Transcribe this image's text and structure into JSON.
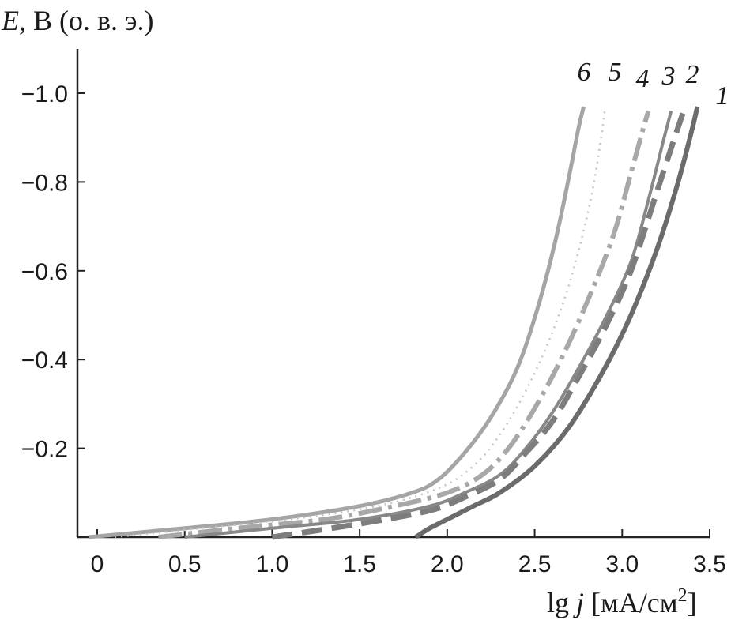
{
  "chart_data": {
    "type": "line",
    "title": "",
    "ylabel": {
      "italic": "E",
      "rest": ", В (о. в. э.)"
    },
    "xlabel": {
      "prefix": "lg ",
      "italic": "j",
      "rest": " [мА/см",
      "sup": "2",
      "end": "]"
    },
    "xlim": [
      -0.12,
      3.5
    ],
    "ylim": [
      0,
      -1.1
    ],
    "x_ticks": [
      0,
      0.5,
      1.0,
      1.5,
      2.0,
      2.5,
      3.0,
      3.5
    ],
    "x_tick_labels": [
      "0",
      "0.5",
      "1.0",
      "1.5",
      "2.0",
      "2.5",
      "3.0",
      "3.5"
    ],
    "y_ticks": [
      -0.2,
      -0.4,
      -0.6,
      -0.8,
      -1.0
    ],
    "y_tick_labels": [
      "−0.2",
      "−0.4",
      "−0.6",
      "−0.8",
      "−1.0"
    ],
    "grid": false,
    "legend": "curve labels at top-right",
    "series": [
      {
        "label": "1",
        "color": "#6b6b6b",
        "dash": "",
        "width": 6,
        "x": [
          1.82,
          1.9,
          2.0,
          2.15,
          2.3,
          2.5,
          2.7,
          2.9,
          3.05,
          3.2,
          3.32,
          3.4,
          3.43
        ],
        "y": [
          0.0,
          -0.02,
          -0.04,
          -0.07,
          -0.1,
          -0.16,
          -0.25,
          -0.38,
          -0.5,
          -0.65,
          -0.8,
          -0.92,
          -0.97
        ]
      },
      {
        "label": "2",
        "color": "#7d7d7d",
        "dash": "26,12",
        "width": 7,
        "x": [
          1.0,
          1.5,
          1.9,
          2.1,
          2.3,
          2.45,
          2.6,
          2.75,
          2.9,
          3.05,
          3.2,
          3.3,
          3.36
        ],
        "y": [
          0.0,
          -0.03,
          -0.06,
          -0.09,
          -0.13,
          -0.19,
          -0.26,
          -0.36,
          -0.47,
          -0.6,
          -0.78,
          -0.9,
          -0.97
        ]
      },
      {
        "label": "3",
        "color": "#888888",
        "dash": "",
        "width": 4,
        "x": [
          0.5,
          1.0,
          1.5,
          1.9,
          2.1,
          2.3,
          2.45,
          2.6,
          2.75,
          2.9,
          3.05,
          3.15,
          3.24,
          3.28
        ],
        "y": [
          0.0,
          -0.02,
          -0.04,
          -0.07,
          -0.1,
          -0.14,
          -0.2,
          -0.28,
          -0.38,
          -0.49,
          -0.62,
          -0.76,
          -0.9,
          -0.96
        ]
      },
      {
        "label": "4",
        "color": "#a8a8a8",
        "dash": "30,8,5,8",
        "width": 6,
        "x": [
          0.35,
          0.8,
          1.3,
          1.7,
          2.0,
          2.2,
          2.35,
          2.5,
          2.65,
          2.8,
          2.95,
          3.05,
          3.12,
          3.15
        ],
        "y": [
          0.0,
          -0.02,
          -0.04,
          -0.07,
          -0.1,
          -0.14,
          -0.2,
          -0.29,
          -0.4,
          -0.53,
          -0.68,
          -0.82,
          -0.92,
          -0.96
        ]
      },
      {
        "label": "5",
        "color": "#c4c4c4",
        "dash": "2,6",
        "width": 2.5,
        "x": [
          0.1,
          0.6,
          1.1,
          1.6,
          1.95,
          2.15,
          2.3,
          2.45,
          2.6,
          2.72,
          2.82,
          2.88,
          2.9
        ],
        "y": [
          0.0,
          -0.02,
          -0.04,
          -0.07,
          -0.11,
          -0.16,
          -0.23,
          -0.33,
          -0.46,
          -0.6,
          -0.76,
          -0.9,
          -0.96
        ]
      },
      {
        "label": "6",
        "color": "#a5a5a5",
        "dash": "",
        "width": 5,
        "x": [
          -0.05,
          0.5,
          1.0,
          1.5,
          1.8,
          1.95,
          2.1,
          2.25,
          2.4,
          2.52,
          2.62,
          2.7,
          2.75,
          2.78
        ],
        "y": [
          0.0,
          -0.02,
          -0.04,
          -0.07,
          -0.1,
          -0.13,
          -0.19,
          -0.27,
          -0.38,
          -0.52,
          -0.67,
          -0.82,
          -0.92,
          -0.97
        ]
      }
    ]
  }
}
